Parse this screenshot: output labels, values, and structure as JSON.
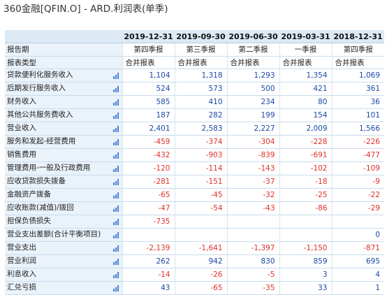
{
  "title": "360金融[QFIN.O] - ARD.利润表(单季)",
  "columns": [
    "2019-12-31",
    "2019-09-30",
    "2019-06-30",
    "2019-03-31",
    "2018-12-31"
  ],
  "text_rows": [
    {
      "label": "报告期",
      "values": [
        "第四季报",
        "第三季报",
        "第二季报",
        "一季报",
        "第四季报"
      ],
      "align": "center"
    },
    {
      "label": "报表类型",
      "values": [
        "合并报表",
        "合并报表",
        "合并报表",
        "合并报表",
        "合并报表"
      ],
      "align": "left"
    }
  ],
  "rows": [
    {
      "label": "贷款便利化服务收入",
      "values": [
        "1,104",
        "1,318",
        "1,293",
        "1,354",
        "1,069"
      ]
    },
    {
      "label": "后期发行服务收入",
      "values": [
        "524",
        "573",
        "500",
        "421",
        "361"
      ]
    },
    {
      "label": "财务收入",
      "values": [
        "585",
        "410",
        "234",
        "80",
        "36"
      ]
    },
    {
      "label": "其他公共服务费收入",
      "values": [
        "187",
        "282",
        "199",
        "154",
        "101"
      ]
    },
    {
      "label": "营业收入",
      "values": [
        "2,401",
        "2,583",
        "2,227",
        "2,009",
        "1,566"
      ]
    },
    {
      "label": "服务和发起-经营费用",
      "values": [
        "-459",
        "-374",
        "-304",
        "-228",
        "-226"
      ]
    },
    {
      "label": "销售费用",
      "values": [
        "-432",
        "-903",
        "-839",
        "-691",
        "-477"
      ]
    },
    {
      "label": "管理费用-一般及行政费用",
      "values": [
        "-120",
        "-114",
        "-143",
        "-102",
        "-109"
      ]
    },
    {
      "label": "应收贷款损失拨备",
      "values": [
        "-281",
        "-151",
        "-37",
        "-18",
        "-9"
      ]
    },
    {
      "label": "金融资产拨备",
      "values": [
        "-65",
        "-45",
        "-32",
        "-25",
        "-22"
      ]
    },
    {
      "label": "应收账款(减值)/拨回",
      "values": [
        "-47",
        "-54",
        "-43",
        "-86",
        "-29"
      ]
    },
    {
      "label": "担保负债损失",
      "values": [
        "-735",
        "",
        "",
        "",
        ""
      ]
    },
    {
      "label": "营业支出差额(合计平衡项目)",
      "values": [
        "",
        "",
        "",
        "",
        "0"
      ]
    },
    {
      "label": "营业支出",
      "values": [
        "-2,139",
        "-1,641",
        "-1,397",
        "-1,150",
        "-871"
      ]
    },
    {
      "label": "营业利润",
      "values": [
        "262",
        "942",
        "830",
        "859",
        "695"
      ]
    },
    {
      "label": "利息收入",
      "values": [
        "-14",
        "-26",
        "-5",
        "3",
        "4"
      ]
    },
    {
      "label": "汇兑亏损",
      "values": [
        "43",
        "-65",
        "-35",
        "33",
        "1"
      ]
    }
  ],
  "colors": {
    "negative": "#e0322a",
    "positive": "#1b49a8",
    "header_bg": "#dde9f5",
    "label_bg": "#eaf2fa"
  },
  "icons": {
    "row_chart": "bar-chart-icon"
  }
}
